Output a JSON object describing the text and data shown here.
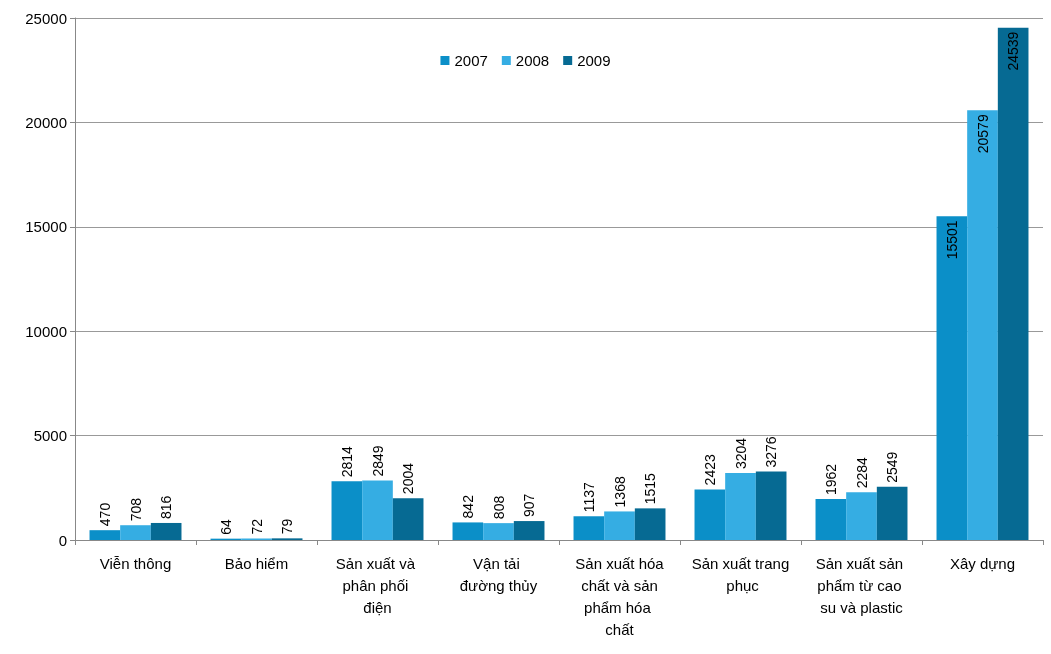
{
  "chart_data": {
    "type": "bar",
    "categories": [
      "Viễn thông",
      "Bảo hiểm",
      "Sản xuất và phân phối điện",
      "Vận tải đường thủy",
      "Sản xuất hóa chất và sản phẩm hóa chất",
      "Sản xuất trang phục",
      "Sản xuất sản phẩm từ cao su và plastic",
      "Xây dựng"
    ],
    "series": [
      {
        "name": "2007",
        "color": "#0b8fc8",
        "values": [
          470,
          64,
          2814,
          842,
          1137,
          2423,
          1962,
          15501
        ]
      },
      {
        "name": "2008",
        "color": "#35ade3",
        "values": [
          708,
          72,
          2849,
          808,
          1368,
          3204,
          2284,
          20579
        ]
      },
      {
        "name": "2009",
        "color": "#066a93",
        "values": [
          816,
          79,
          2004,
          907,
          1515,
          3276,
          2549,
          24539
        ]
      }
    ],
    "ylim": [
      0,
      25000
    ],
    "yticks": [
      0,
      5000,
      10000,
      15000,
      20000,
      25000
    ],
    "grid": "y",
    "legend": "top",
    "data_labels": true
  }
}
